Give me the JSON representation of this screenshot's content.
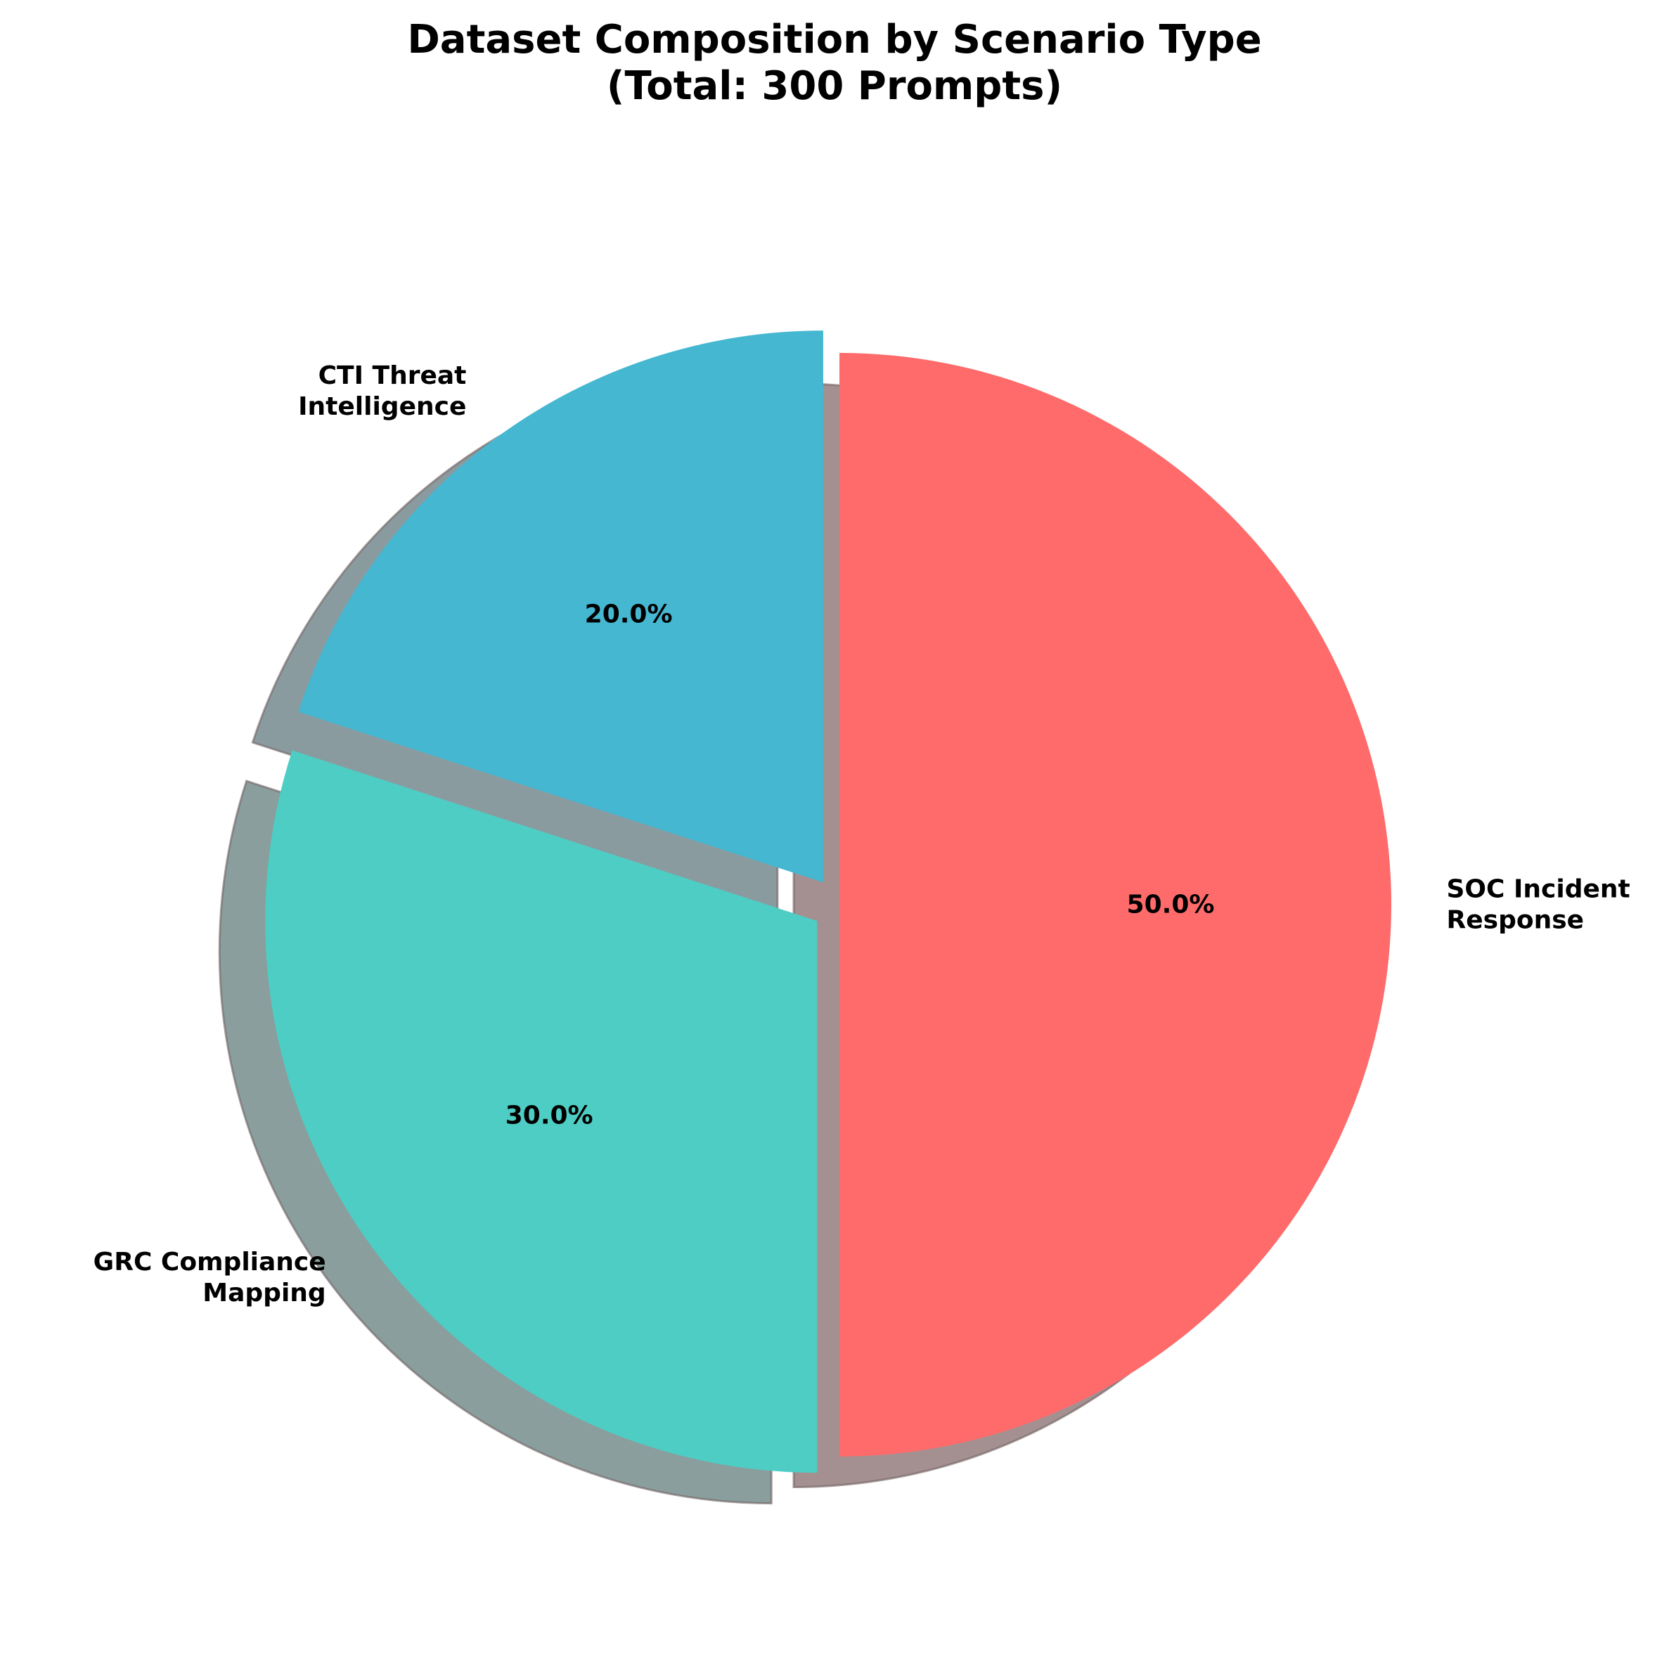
{
  "chart_data": {
    "type": "pie",
    "title_lines": [
      "Dataset Composition by Scenario Type",
      "(Total: 300 Prompts)"
    ],
    "start_angle_deg": 90,
    "direction": "clockwise",
    "shadow": true,
    "slices": [
      {
        "label_lines": [
          "SOC Incident",
          "Response"
        ],
        "value": 50.0,
        "percent_label": "50.0%",
        "color": "#FF6B6B",
        "shadow_color": "#A49090",
        "explode": 0.0
      },
      {
        "label_lines": [
          "GRC Compliance",
          "Mapping"
        ],
        "value": 30.0,
        "percent_label": "30.0%",
        "color": "#4ECDC4",
        "shadow_color": "#8A9E9E",
        "explode": 0.05
      },
      {
        "label_lines": [
          "CTI Threat",
          "Intelligence"
        ],
        "value": 20.0,
        "percent_label": "20.0%",
        "color": "#45B7D1",
        "shadow_color": "#8A9BA0",
        "explode": 0.05
      }
    ]
  }
}
